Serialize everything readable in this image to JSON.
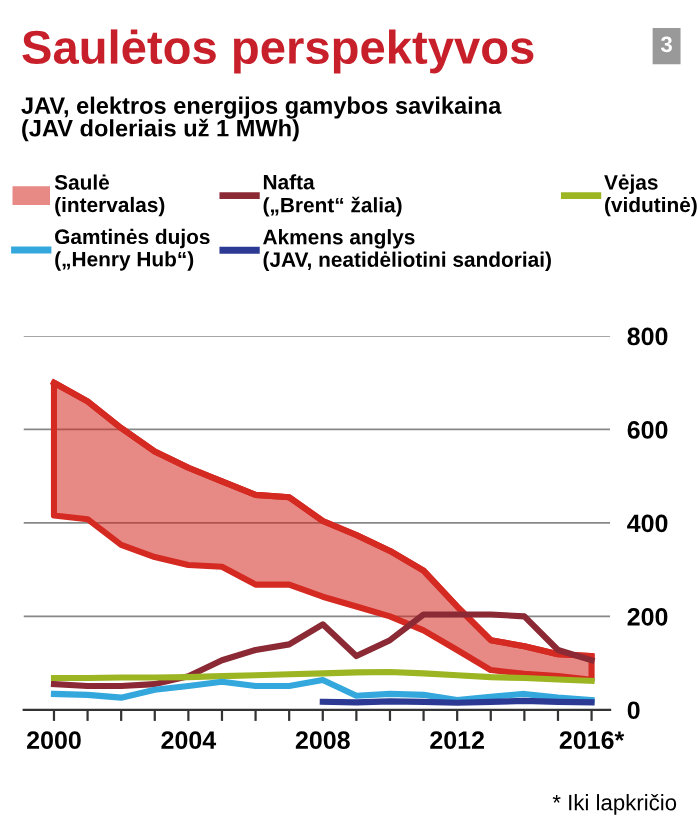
{
  "chart_data": {
    "type": "line",
    "title": "Saulėtos perspektyvos",
    "subtitle": "JAV, elektros energijos gamybos savikaina\n(JAV doleriais už 1 MWh)",
    "x": [
      2000,
      2001,
      2002,
      2003,
      2004,
      2005,
      2006,
      2007,
      2008,
      2009,
      2010,
      2011,
      2012,
      2013,
      2014,
      2015,
      2016
    ],
    "series": [
      {
        "name": "Saulė\n(intervalas)",
        "type": "line",
        "color": "#d42a22",
        "values": [
          700,
          660,
          603,
          553,
          518,
          489,
          460,
          455,
          404,
          374,
          340,
          298,
          221,
          149,
          136,
          119,
          115
        ],
        "lower": [
          416,
          408,
          353,
          327,
          310,
          306,
          268,
          268,
          242,
          221,
          200,
          170,
          128,
          85,
          77,
          72,
          64
        ],
        "upper": [
          700,
          660,
          603,
          553,
          518,
          489,
          460,
          455,
          404,
          374,
          340,
          298,
          221,
          149,
          136,
          119,
          115
        ]
      },
      {
        "name": "Nafta\n(„Brent“ žalia)",
        "color": "#8b2a35",
        "values": [
          55,
          51,
          51,
          55,
          72,
          106,
          128,
          140,
          183,
          115,
          149,
          204,
          204,
          204,
          200,
          128,
          106
        ]
      },
      {
        "name": "Vėjas\n(vidutinė)",
        "color": "#9cb523",
        "values": [
          68,
          68,
          69,
          69,
          70,
          72,
          74,
          76,
          78,
          80,
          81,
          78,
          74,
          70,
          68,
          65,
          62
        ]
      },
      {
        "name": "Gamtinės dujos\n(„Henry Hub“)",
        "color": "#34a8dc",
        "values": [
          34,
          32,
          26,
          43,
          51,
          60,
          51,
          51,
          64,
          30,
          34,
          32,
          21,
          28,
          34,
          26,
          21
        ]
      },
      {
        "name": "Akmens anglys\n(JAV, neatidėliotini sandoriai)",
        "color": "#2d3a94",
        "x": [
          2008,
          2009,
          2010,
          2011,
          2012,
          2013,
          2014,
          2015,
          2016
        ],
        "values": [
          17,
          16,
          18,
          17,
          15,
          17,
          19,
          17,
          16
        ]
      }
    ],
    "xlim": [
      1999.1,
      2016.55
    ],
    "ylim": [
      0,
      800
    ],
    "xticks": [
      2000,
      {
        "value": 2001,
        "label": null
      },
      {
        "value": 2002,
        "label": null
      },
      {
        "value": 2003,
        "label": null
      },
      2004,
      {
        "value": 2005,
        "label": null
      },
      {
        "value": 2006,
        "label": null
      },
      {
        "value": 2007,
        "label": null
      },
      2008,
      {
        "value": 2009,
        "label": null
      },
      {
        "value": 2010,
        "label": null
      },
      {
        "value": 2011,
        "label": null
      },
      2012,
      {
        "value": 2013,
        "label": null
      },
      {
        "value": 2014,
        "label": null
      },
      {
        "value": 2015,
        "label": null
      },
      {
        "value": 2016,
        "label": "2016*"
      }
    ],
    "yticks": [
      0,
      200,
      400,
      600,
      800
    ],
    "grid": "y",
    "legend": "top",
    "marker": "none",
    "line_style": "solid",
    "annotations": [
      "3",
      "* Iki lapkričio"
    ]
  }
}
